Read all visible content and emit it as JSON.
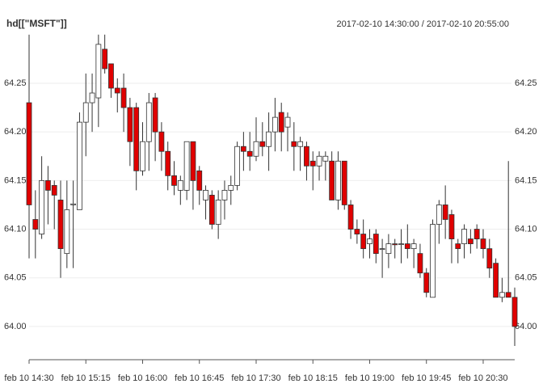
{
  "chart_data": {
    "type": "candlestick",
    "title": "hd[[\"MSFT\"]]",
    "subtitle": "2017-02-10 14:30:00 / 2017-02-10 20:55:00",
    "categories": [
      "feb 10 14:30",
      null,
      null,
      null,
      null,
      null,
      null,
      null,
      null,
      "feb 10 15:15",
      null,
      null,
      null,
      null,
      null,
      null,
      null,
      null,
      "feb 10 16:00",
      null,
      null,
      null,
      null,
      null,
      null,
      null,
      null,
      "feb 10 16:45",
      null,
      null,
      null,
      null,
      null,
      null,
      null,
      null,
      "feb 10 17:30",
      null,
      null,
      null,
      null,
      null,
      null,
      null,
      null,
      "feb 10 18:15",
      null,
      null,
      null,
      null,
      null,
      null,
      null,
      null,
      "feb 10 19:00",
      null,
      null,
      null,
      null,
      null,
      null,
      null,
      null,
      "feb 10 19:45",
      null,
      null,
      null,
      null,
      null,
      null,
      null,
      null,
      "feb 10 20:30",
      null,
      null,
      null,
      null,
      null
    ],
    "open": [
      64.23,
      64.11,
      64.095,
      64.15,
      64.145,
      64.13,
      64.075,
      64.125,
      64.12,
      64.21,
      64.23,
      64.235,
      64.285,
      64.27,
      64.245,
      64.245,
      64.225,
      64.225,
      64.16,
      64.19,
      64.235,
      64.2,
      64.18,
      64.155,
      64.14,
      64.14,
      64.19,
      64.16,
      64.13,
      64.135,
      64.105,
      64.13,
      64.14,
      64.145,
      64.185,
      64.18,
      64.175,
      64.19,
      64.185,
      64.2,
      64.22,
      64.205,
      64.19,
      64.185,
      64.185,
      64.17,
      64.165,
      64.17,
      64.17,
      64.13,
      64.17,
      64.125,
      64.1,
      64.095,
      64.085,
      64.095,
      64.08,
      64.075,
      64.085,
      64.085,
      64.085,
      64.08,
      64.075,
      64.055,
      64.03,
      64.105,
      64.125,
      64.115,
      64.085,
      64.085,
      64.09,
      64.1,
      64.09,
      64.08,
      64.065,
      64.03,
      64.035,
      64.03
    ],
    "high": [
      64.3,
      64.14,
      64.175,
      64.165,
      64.15,
      64.15,
      64.15,
      64.15,
      64.22,
      64.26,
      64.26,
      64.3,
      64.3,
      64.27,
      64.255,
      64.26,
      64.235,
      64.23,
      64.21,
      64.24,
      64.24,
      64.21,
      64.19,
      64.17,
      64.155,
      64.19,
      64.19,
      64.165,
      64.145,
      64.14,
      64.14,
      64.15,
      64.155,
      64.19,
      64.2,
      64.2,
      64.215,
      64.21,
      64.22,
      64.235,
      64.23,
      64.22,
      64.21,
      64.195,
      64.19,
      64.18,
      64.18,
      64.18,
      64.18,
      64.18,
      64.17,
      64.13,
      64.11,
      64.11,
      64.1,
      64.1,
      64.09,
      64.095,
      64.09,
      64.1,
      64.105,
      64.09,
      64.085,
      64.06,
      64.11,
      64.13,
      64.145,
      64.12,
      64.09,
      64.105,
      64.1,
      64.105,
      64.1,
      64.09,
      64.07,
      64.05,
      64.17,
      64.04
    ],
    "low": [
      64.07,
      64.07,
      64.09,
      64.105,
      64.1,
      64.05,
      64.06,
      64.06,
      64.12,
      64.175,
      64.2,
      64.205,
      64.26,
      64.235,
      64.22,
      64.2,
      64.165,
      64.14,
      64.155,
      64.16,
      64.17,
      64.16,
      64.14,
      64.135,
      64.125,
      64.13,
      64.12,
      64.125,
      64.11,
      64.1,
      64.09,
      64.11,
      64.125,
      64.14,
      64.16,
      64.16,
      64.17,
      64.175,
      64.16,
      64.18,
      64.18,
      64.18,
      64.16,
      64.16,
      64.15,
      64.14,
      64.15,
      64.15,
      64.13,
      64.12,
      64.12,
      64.09,
      64.085,
      64.07,
      64.07,
      64.065,
      64.05,
      64.06,
      64.07,
      64.065,
      64.07,
      64.06,
      64.05,
      64.03,
      64.03,
      64.085,
      64.09,
      64.065,
      64.065,
      64.07,
      64.075,
      64.08,
      64.07,
      64.05,
      64.03,
      64.025,
      64.03,
      63.98
    ],
    "close": [
      64.125,
      64.1,
      64.15,
      64.14,
      64.135,
      64.08,
      64.12,
      64.126,
      64.21,
      64.23,
      64.24,
      64.29,
      64.265,
      64.245,
      64.24,
      64.225,
      64.19,
      64.16,
      64.19,
      64.23,
      64.2,
      64.18,
      64.155,
      64.145,
      64.15,
      64.19,
      64.15,
      64.14,
      64.14,
      64.105,
      64.13,
      64.14,
      64.145,
      64.185,
      64.18,
      64.175,
      64.19,
      64.185,
      64.2,
      64.215,
      64.2,
      64.215,
      64.185,
      64.19,
      64.165,
      64.165,
      64.175,
      64.175,
      64.13,
      64.17,
      64.125,
      64.1,
      64.095,
      64.08,
      64.09,
      64.075,
      64.08,
      64.085,
      64.084,
      64.085,
      64.08,
      64.085,
      64.055,
      64.035,
      64.105,
      64.125,
      64.11,
      64.09,
      64.08,
      64.1,
      64.085,
      64.09,
      64.08,
      64.06,
      64.03,
      64.035,
      64.03,
      64.0
    ],
    "up_color": "#ffffff",
    "down_color": "#e00000",
    "ylim": [
      63.975,
      64.305
    ],
    "yticks": [
      {
        "value": 64.0,
        "label": "64.00"
      },
      {
        "value": 64.05,
        "label": "64.05"
      },
      {
        "value": 64.1,
        "label": "64.10"
      },
      {
        "value": 64.15,
        "label": "64.15"
      },
      {
        "value": 64.2,
        "label": "64.20"
      },
      {
        "value": 64.25,
        "label": "64.25"
      }
    ],
    "grid": true
  }
}
